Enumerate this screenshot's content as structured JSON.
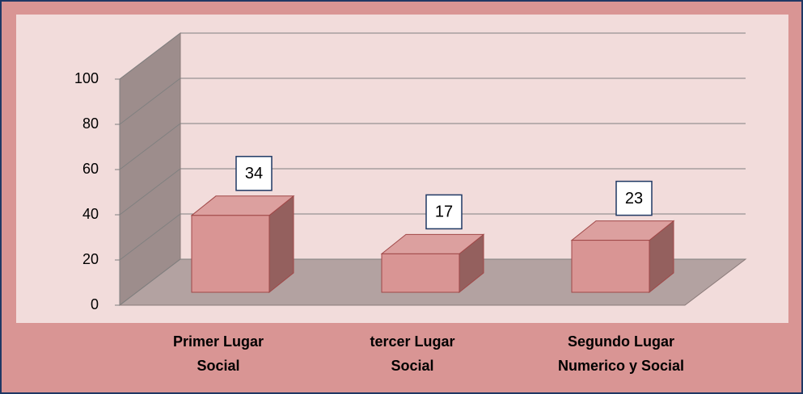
{
  "chart_data": {
    "type": "bar3d",
    "categories": [
      "Primer Lugar\nSocial",
      "tercer  Lugar\nSocial",
      "Segundo Lugar\nNumerico y Social"
    ],
    "values": [
      34,
      17,
      23
    ],
    "color": "#d99594",
    "ylim": [
      0,
      100
    ],
    "yticks": [
      0,
      20,
      40,
      60,
      80,
      100
    ],
    "grid": true
  }
}
